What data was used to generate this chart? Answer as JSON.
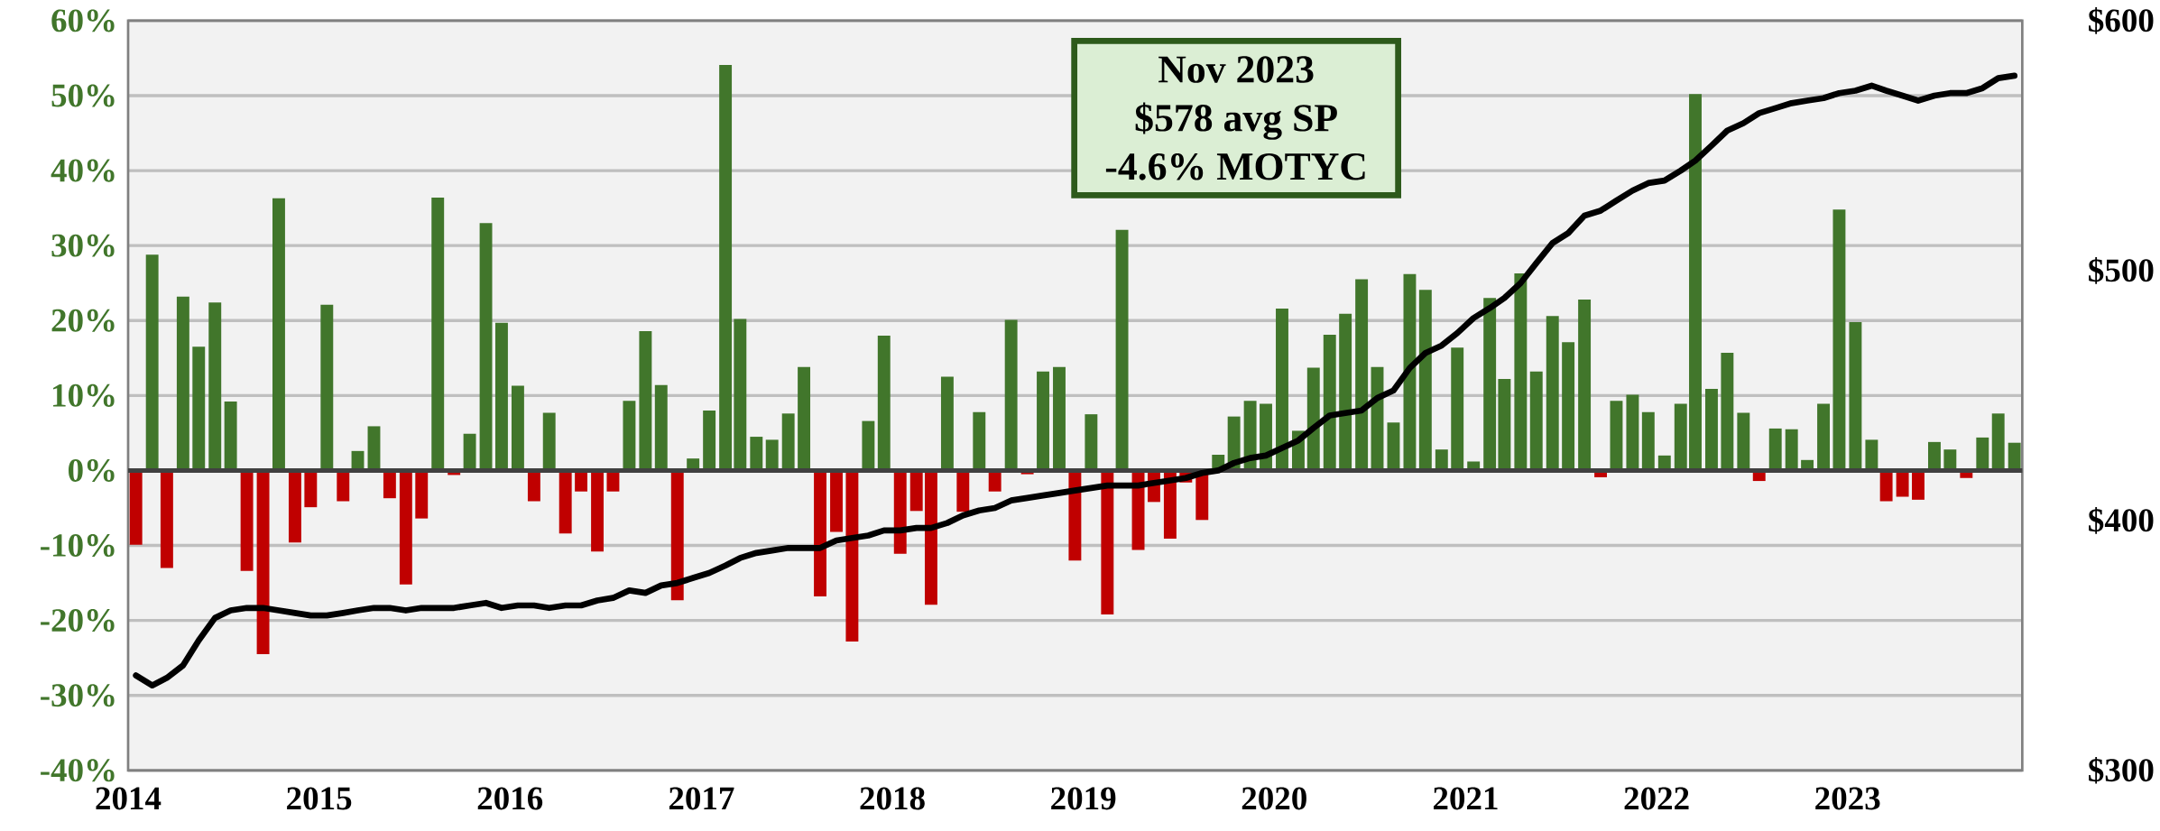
{
  "chart_data": {
    "type": "bar",
    "x": [
      "2014-01-16",
      "2014-02-16",
      "2014-03-16",
      "2014-04-16",
      "2014-05-16",
      "2014-06-16",
      "2014-07-16",
      "2014-08-16",
      "2014-09-16",
      "2014-10-16",
      "2014-11-16",
      "2014-12-16",
      "2015-01-16",
      "2015-02-16",
      "2015-03-16",
      "2015-04-16",
      "2015-05-16",
      "2015-06-16",
      "2015-07-16",
      "2015-08-16",
      "2015-09-16",
      "2015-10-16",
      "2015-11-16",
      "2015-12-16",
      "2016-01-16",
      "2016-02-16",
      "2016-03-16",
      "2016-04-16",
      "2016-05-16",
      "2016-06-16",
      "2016-07-16",
      "2016-08-16",
      "2016-09-16",
      "2016-10-16",
      "2016-11-16",
      "2016-12-16",
      "2017-01-16",
      "2017-02-16",
      "2017-03-16",
      "2017-04-16",
      "2017-05-16",
      "2017-06-16",
      "2017-07-16",
      "2017-08-16",
      "2017-09-16",
      "2017-10-16",
      "2017-11-16",
      "2017-12-16",
      "2018-01-16",
      "2018-02-16",
      "2018-03-16",
      "2018-04-16",
      "2018-05-16",
      "2018-06-16",
      "2018-07-16",
      "2018-08-16",
      "2018-09-16",
      "2018-10-16",
      "2018-11-16",
      "2018-12-16",
      "2019-01-16",
      "2019-02-16",
      "2019-03-16",
      "2019-04-16",
      "2019-05-16",
      "2019-06-16",
      "2019-07-16",
      "2019-08-16",
      "2019-09-16",
      "2019-10-16",
      "2019-11-16",
      "2019-12-16",
      "2020-01-16",
      "2020-02-16",
      "2020-03-16",
      "2020-04-16",
      "2020-05-16",
      "2020-06-16",
      "2020-07-16",
      "2020-08-16",
      "2020-09-16",
      "2020-10-16",
      "2020-11-16",
      "2020-12-16",
      "2021-01-16",
      "2021-02-16",
      "2021-03-16",
      "2021-04-16",
      "2021-05-16",
      "2021-06-16",
      "2021-07-16",
      "2021-08-16",
      "2021-09-16",
      "2021-10-16",
      "2021-11-16",
      "2021-12-16",
      "2022-01-16",
      "2022-02-16",
      "2022-03-16",
      "2022-04-16",
      "2022-05-16",
      "2022-06-16",
      "2022-07-16",
      "2022-08-16",
      "2022-09-16",
      "2022-10-16",
      "2022-11-16",
      "2022-12-16",
      "2023-01-16",
      "2023-02-16",
      "2023-03-16",
      "2023-04-16",
      "2023-05-16",
      "2023-06-16",
      "2023-07-16",
      "2023-08-16",
      "2023-09-16",
      "2023-10-16",
      "2023-11-16"
    ],
    "series": [
      {
        "axis": "y",
        "values": [
          -9.9,
          28.8,
          -13.0,
          23.2,
          16.5,
          22.4,
          9.2,
          -13.4,
          -24.5,
          36.3,
          -9.6,
          -4.9,
          22.1,
          -4.1,
          2.6,
          5.9,
          -3.7,
          -15.2,
          -6.4,
          36.4,
          -0.6,
          4.9,
          33.0,
          19.7,
          11.3,
          -4.1,
          7.7,
          -8.4,
          -2.8,
          -10.8,
          -2.8,
          9.3,
          18.6,
          11.4,
          -17.3,
          1.6,
          8.0,
          54.1,
          20.2,
          4.5,
          4.1,
          7.6,
          13.8,
          -16.8,
          -8.2,
          -22.8,
          6.6,
          18.0,
          -11.1,
          -5.4,
          -17.9,
          12.5,
          -5.5,
          7.8,
          -2.8,
          20.1,
          -0.5,
          13.2,
          13.8,
          -12.0,
          7.5,
          -19.2,
          32.1,
          -10.6,
          -4.2,
          -9.1,
          -1.6,
          -6.6,
          2.1,
          7.2,
          9.3,
          8.9,
          21.6,
          5.3,
          13.7,
          18.1,
          20.9,
          25.5,
          13.8,
          6.4,
          26.2,
          24.1,
          2.8,
          16.4,
          1.2,
          23.0,
          12.2,
          26.3,
          13.2,
          20.6,
          17.1,
          22.8,
          -0.9,
          9.3,
          10.1,
          7.8,
          2.0,
          8.9,
          50.2,
          10.9,
          15.7,
          7.7,
          -1.4,
          5.6,
          5.5,
          1.4,
          8.9,
          34.8,
          19.8,
          4.1,
          -4.1,
          -3.5,
          -3.9,
          3.8,
          2.8,
          -1.0,
          4.4,
          7.6,
          3.7
        ],
        "colors": [
          "#c00000",
          "#41762b",
          "#c00000",
          "#41762b",
          "#41762b",
          "#41762b",
          "#41762b",
          "#c00000",
          "#c00000",
          "#41762b",
          "#c00000",
          "#c00000",
          "#41762b",
          "#c00000",
          "#41762b",
          "#41762b",
          "#c00000",
          "#c00000",
          "#c00000",
          "#41762b",
          "#c00000",
          "#41762b",
          "#41762b",
          "#41762b",
          "#41762b",
          "#c00000",
          "#41762b",
          "#c00000",
          "#c00000",
          "#c00000",
          "#c00000",
          "#41762b",
          "#41762b",
          "#41762b",
          "#c00000",
          "#41762b",
          "#41762b",
          "#41762b",
          "#41762b",
          "#41762b",
          "#41762b",
          "#41762b",
          "#41762b",
          "#c00000",
          "#c00000",
          "#c00000",
          "#41762b",
          "#41762b",
          "#c00000",
          "#c00000",
          "#c00000",
          "#41762b",
          "#c00000",
          "#41762b",
          "#c00000",
          "#41762b",
          "#c00000",
          "#41762b",
          "#41762b",
          "#c00000",
          "#41762b",
          "#c00000",
          "#41762b",
          "#c00000",
          "#c00000",
          "#c00000",
          "#c00000",
          "#c00000",
          "#41762b",
          "#41762b",
          "#41762b",
          "#41762b",
          "#41762b",
          "#41762b",
          "#41762b",
          "#41762b",
          "#41762b",
          "#41762b",
          "#41762b",
          "#41762b",
          "#41762b",
          "#41762b",
          "#41762b",
          "#41762b",
          "#41762b",
          "#41762b",
          "#41762b",
          "#41762b",
          "#41762b",
          "#41762b",
          "#41762b",
          "#41762b",
          "#c00000",
          "#41762b",
          "#41762b",
          "#41762b",
          "#41762b",
          "#41762b",
          "#41762b",
          "#41762b",
          "#41762b",
          "#41762b",
          "#c00000",
          "#41762b",
          "#41762b",
          "#41762b",
          "#41762b",
          "#41762b",
          "#41762b",
          "#41762b",
          "#c00000",
          "#c00000",
          "#c00000",
          "#41762b",
          "#41762b",
          "#c00000",
          "#41762b",
          "#41762b",
          "#41762b"
        ]
      },
      {
        "type": "line",
        "axis": "y2",
        "color": "#000000",
        "values": [
          338,
          334,
          337,
          342,
          352,
          361,
          364,
          365,
          365,
          364,
          363,
          362,
          362,
          363,
          364,
          365,
          365,
          364,
          365,
          365,
          365,
          366,
          367,
          365,
          366,
          366,
          365,
          366,
          366,
          368,
          369,
          372,
          371,
          374,
          375,
          377,
          379,
          382,
          385,
          387,
          388,
          389,
          389,
          389,
          392,
          393,
          394,
          396,
          396,
          397,
          397,
          399,
          402,
          404,
          405,
          408,
          409,
          410,
          411,
          412,
          413,
          414,
          414,
          414,
          415,
          416,
          417,
          419,
          420,
          423,
          425,
          426,
          429,
          432,
          437,
          442,
          443,
          444,
          449,
          452,
          461,
          467,
          470,
          475,
          481,
          485,
          489,
          495,
          503,
          511,
          515,
          522,
          524,
          528,
          532,
          535,
          536,
          540,
          544,
          550,
          556,
          559,
          563,
          565,
          567,
          568,
          569,
          571,
          572,
          574,
          572,
          570,
          568,
          570,
          571,
          571,
          573,
          577,
          578
        ]
      }
    ],
    "xlim": [
      "2014-01",
      "2023-12"
    ],
    "xticks": [
      "2014",
      "2015",
      "2016",
      "2017",
      "2018",
      "2019",
      "2020",
      "2021",
      "2022",
      "2023"
    ],
    "ylim": [
      -40,
      60
    ],
    "yticks": [
      {
        "value": -40,
        "label": "-40%"
      },
      {
        "value": -30,
        "label": "-30%"
      },
      {
        "value": -20,
        "label": "-20%"
      },
      {
        "value": -10,
        "label": "-10%"
      },
      {
        "value": 0,
        "label": "0%"
      },
      {
        "value": 10,
        "label": "10%"
      },
      {
        "value": 20,
        "label": "20%"
      },
      {
        "value": 30,
        "label": "30%"
      },
      {
        "value": 40,
        "label": "40%"
      },
      {
        "value": 50,
        "label": "50%"
      },
      {
        "value": 60,
        "label": "60%"
      }
    ],
    "y2lim": [
      300,
      600
    ],
    "y2ticks": [
      {
        "value": 300,
        "label": "$300"
      },
      {
        "value": 400,
        "label": "$400"
      },
      {
        "value": 500,
        "label": "$500"
      },
      {
        "value": 600,
        "label": "$600"
      }
    ],
    "grid": "y",
    "annotations": [
      "Nov 2023",
      "$578 avg SP",
      "-4.6% MOTYC"
    ]
  }
}
